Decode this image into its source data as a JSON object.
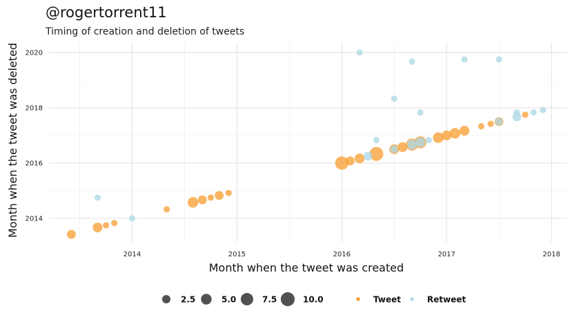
{
  "header": {
    "title": "@rogertorrent11",
    "subtitle": "Timing of creation and deletion of tweets"
  },
  "chart_data": {
    "type": "scatter",
    "title": "@rogertorrent11",
    "subtitle": "Timing of creation and deletion of tweets",
    "xlabel": "Month when the tweet was created",
    "ylabel": "Month when the tweet was deleted",
    "xlim": [
      2013.2,
      2018.15
    ],
    "ylim": [
      2013.15,
      2020.35
    ],
    "x_ticks": [
      {
        "value": 2014,
        "label": "2014"
      },
      {
        "value": 2015,
        "label": "2015"
      },
      {
        "value": 2016,
        "label": "2016"
      },
      {
        "value": 2017,
        "label": "2017"
      },
      {
        "value": 2018,
        "label": "2018"
      }
    ],
    "y_ticks": [
      {
        "value": 2014,
        "label": "2014"
      },
      {
        "value": 2016,
        "label": "2016"
      },
      {
        "value": 2018,
        "label": "2018"
      },
      {
        "value": 2020,
        "label": "2020"
      }
    ],
    "grid": true,
    "legend_position": "bottom",
    "size_legend": {
      "values": [
        2.5,
        5.0,
        7.5,
        10.0
      ],
      "labels": [
        "2.5",
        "5.0",
        "7.5",
        "10.0"
      ]
    },
    "colors": {
      "Tweet": "#f7a035",
      "Retweet": "#add8e6",
      "size_legend": "#333333"
    },
    "series": [
      {
        "name": "Tweet",
        "points": [
          {
            "x": 2013.42,
            "y": 2013.42,
            "size": 3
          },
          {
            "x": 2013.67,
            "y": 2013.67,
            "size": 4
          },
          {
            "x": 2013.75,
            "y": 2013.75,
            "size": 1
          },
          {
            "x": 2013.83,
            "y": 2013.83,
            "size": 1
          },
          {
            "x": 2014.33,
            "y": 2014.33,
            "size": 1
          },
          {
            "x": 2014.58,
            "y": 2014.58,
            "size": 5
          },
          {
            "x": 2014.67,
            "y": 2014.67,
            "size": 3
          },
          {
            "x": 2014.75,
            "y": 2014.75,
            "size": 1
          },
          {
            "x": 2014.83,
            "y": 2014.83,
            "size": 3
          },
          {
            "x": 2014.92,
            "y": 2014.92,
            "size": 1
          },
          {
            "x": 2016.0,
            "y": 2016.0,
            "size": 9
          },
          {
            "x": 2016.08,
            "y": 2016.08,
            "size": 3
          },
          {
            "x": 2016.17,
            "y": 2016.17,
            "size": 4
          },
          {
            "x": 2016.33,
            "y": 2016.33,
            "size": 10
          },
          {
            "x": 2016.5,
            "y": 2016.5,
            "size": 4
          },
          {
            "x": 2016.58,
            "y": 2016.58,
            "size": 4
          },
          {
            "x": 2016.67,
            "y": 2016.67,
            "size": 7
          },
          {
            "x": 2016.75,
            "y": 2016.75,
            "size": 7
          },
          {
            "x": 2016.92,
            "y": 2016.92,
            "size": 5
          },
          {
            "x": 2017.0,
            "y": 2017.0,
            "size": 4
          },
          {
            "x": 2017.08,
            "y": 2017.08,
            "size": 5
          },
          {
            "x": 2017.17,
            "y": 2017.17,
            "size": 4
          },
          {
            "x": 2017.33,
            "y": 2017.33,
            "size": 1
          },
          {
            "x": 2017.42,
            "y": 2017.42,
            "size": 1
          },
          {
            "x": 2017.5,
            "y": 2017.5,
            "size": 3
          },
          {
            "x": 2017.75,
            "y": 2017.75,
            "size": 1
          }
        ]
      },
      {
        "name": "Retweet",
        "points": [
          {
            "x": 2013.67,
            "y": 2014.75,
            "size": 1
          },
          {
            "x": 2014.0,
            "y": 2014.0,
            "size": 1
          },
          {
            "x": 2016.17,
            "y": 2020.0,
            "size": 1
          },
          {
            "x": 2016.25,
            "y": 2016.25,
            "size": 3
          },
          {
            "x": 2016.33,
            "y": 2016.83,
            "size": 1
          },
          {
            "x": 2016.5,
            "y": 2018.33,
            "size": 1
          },
          {
            "x": 2016.5,
            "y": 2016.5,
            "size": 2
          },
          {
            "x": 2016.67,
            "y": 2019.67,
            "size": 1
          },
          {
            "x": 2016.67,
            "y": 2016.67,
            "size": 4
          },
          {
            "x": 2016.75,
            "y": 2017.83,
            "size": 1
          },
          {
            "x": 2016.75,
            "y": 2016.75,
            "size": 4
          },
          {
            "x": 2016.83,
            "y": 2016.83,
            "size": 1
          },
          {
            "x": 2017.17,
            "y": 2019.75,
            "size": 1
          },
          {
            "x": 2017.5,
            "y": 2019.75,
            "size": 1
          },
          {
            "x": 2017.5,
            "y": 2017.5,
            "size": 2
          },
          {
            "x": 2017.67,
            "y": 2017.83,
            "size": 1
          },
          {
            "x": 2017.67,
            "y": 2017.67,
            "size": 3
          },
          {
            "x": 2017.83,
            "y": 2017.83,
            "size": 1
          },
          {
            "x": 2017.92,
            "y": 2017.92,
            "size": 1
          }
        ]
      }
    ]
  }
}
